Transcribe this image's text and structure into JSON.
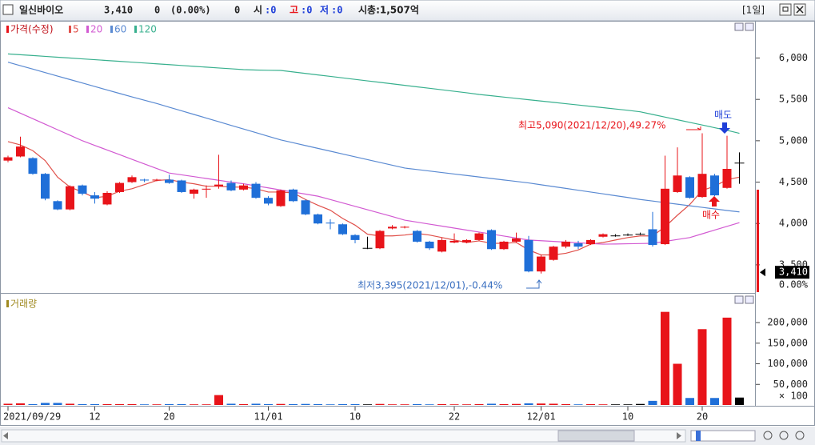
{
  "header": {
    "name": "일신바이오",
    "price": "3,410",
    "change": "0",
    "change_pct": "(0.00%)",
    "volume": "0",
    "open": {
      "label": "시",
      "value": ":0"
    },
    "high": {
      "label": "고",
      "value": ":0"
    },
    "low": {
      "label": "저",
      "value": ":0"
    },
    "market_cap": "시총:1,507억",
    "period": "[1일]"
  },
  "chart_data": [
    {
      "type": "candlestick",
      "legend_title": "가격(수정)",
      "up_color": "#e8141a",
      "down_color": "#1f6fd8",
      "doji_color": "#000000",
      "categories": [
        "2021/09/29",
        null,
        null,
        null,
        null,
        null,
        null,
        "12",
        null,
        null,
        null,
        null,
        null,
        "20",
        null,
        null,
        null,
        null,
        null,
        null,
        null,
        "11/01",
        null,
        null,
        null,
        null,
        null,
        null,
        "10",
        null,
        null,
        null,
        null,
        null,
        null,
        null,
        "22",
        null,
        null,
        null,
        null,
        null,
        null,
        "12/01",
        null,
        null,
        null,
        null,
        null,
        null,
        "10",
        null,
        null,
        null,
        null,
        null,
        "20",
        null,
        null,
        null
      ],
      "open": [
        4760,
        4810,
        4790,
        4600,
        4270,
        4170,
        4460,
        4340,
        4230,
        4380,
        4500,
        4530,
        4520,
        4530,
        4520,
        4360,
        4410,
        4450,
        4490,
        4410,
        4480,
        4310,
        4210,
        4410,
        4280,
        4110,
        4010,
        3990,
        3860,
        3700,
        3700,
        3940,
        3950,
        3910,
        3780,
        3660,
        3770,
        3770,
        3800,
        3920,
        3690,
        3780,
        3800,
        3420,
        3560,
        3720,
        3760,
        3750,
        3840,
        3850,
        3860,
        3870,
        3930,
        3750,
        4380,
        4560,
        4320,
        4580,
        4430,
        4730
      ],
      "high": [
        4820,
        5050,
        4800,
        4610,
        4280,
        4460,
        4470,
        4380,
        4390,
        4500,
        4580,
        4540,
        4540,
        4590,
        4530,
        4420,
        4460,
        4830,
        4520,
        4480,
        4500,
        4330,
        4410,
        4420,
        4290,
        4120,
        4050,
        4000,
        3870,
        3840,
        3920,
        3980,
        3970,
        3920,
        3790,
        3830,
        3880,
        3810,
        3890,
        3930,
        3790,
        3890,
        3850,
        3620,
        3730,
        3800,
        3790,
        3810,
        3880,
        3870,
        3880,
        3890,
        4140,
        4820,
        4920,
        4570,
        5090,
        4600,
        5060,
        4860
      ],
      "low": [
        4740,
        4800,
        4590,
        4280,
        4160,
        4160,
        4340,
        4240,
        4220,
        4370,
        4490,
        4500,
        4510,
        4480,
        4370,
        4300,
        4310,
        4420,
        4390,
        4400,
        4300,
        4220,
        4200,
        4260,
        4100,
        3990,
        3930,
        3860,
        3760,
        3690,
        3690,
        3930,
        3940,
        3770,
        3680,
        3650,
        3760,
        3760,
        3790,
        3680,
        3680,
        3770,
        3410,
        3395,
        3550,
        3700,
        3690,
        3740,
        3830,
        3840,
        3850,
        3860,
        3720,
        3740,
        4370,
        4300,
        4310,
        4330,
        4420,
        4480
      ],
      "close": [
        4800,
        4930,
        4600,
        4300,
        4170,
        4450,
        4360,
        4300,
        4370,
        4490,
        4560,
        4520,
        4530,
        4490,
        4380,
        4410,
        4420,
        4470,
        4400,
        4460,
        4310,
        4240,
        4400,
        4270,
        4110,
        4000,
        4000,
        3870,
        3800,
        3700,
        3910,
        3960,
        3960,
        3780,
        3700,
        3800,
        3790,
        3800,
        3880,
        3690,
        3780,
        3820,
        3420,
        3600,
        3720,
        3780,
        3720,
        3800,
        3870,
        3850,
        3860,
        3870,
        3740,
        4420,
        4580,
        4310,
        4600,
        4340,
        4660,
        4730
      ],
      "series": [
        {
          "name": "5",
          "color": "#e0504a",
          "values": [
            4990,
            4950,
            4880,
            4760,
            4560,
            4440,
            4380,
            4310,
            4330,
            4390,
            4420,
            4470,
            4520,
            4530,
            4500,
            4480,
            4450,
            4450,
            4440,
            4440,
            4420,
            4380,
            4380,
            4370,
            4290,
            4220,
            4160,
            4060,
            3980,
            3870,
            3850,
            3850,
            3860,
            3880,
            3860,
            3830,
            3800,
            3770,
            3790,
            3760,
            3760,
            3770,
            3680,
            3620,
            3620,
            3640,
            3680,
            3750,
            3770,
            3800,
            3830,
            3850,
            3850,
            3960,
            4100,
            4230,
            4400,
            4450,
            4530,
            4560
          ]
        },
        {
          "name": "20",
          "color": "#d25ad2",
          "values": [
            5400,
            5333,
            5267,
            5200,
            5133,
            5067,
            5000,
            4944,
            4888,
            4832,
            4776,
            4720,
            4664,
            4610,
            4588,
            4566,
            4544,
            4522,
            4500,
            4480,
            4455,
            4430,
            4405,
            4380,
            4355,
            4330,
            4289,
            4248,
            4207,
            4166,
            4125,
            4084,
            4040,
            4016,
            3992,
            3968,
            3944,
            3920,
            3896,
            3872,
            3848,
            3824,
            3800,
            3792,
            3783,
            3775,
            3767,
            3758,
            3750,
            3752,
            3755,
            3757,
            3760,
            3783,
            3807,
            3830,
            3875,
            3920,
            3965,
            4010
          ]
        },
        {
          "name": "60",
          "color": "#5a8ad2",
          "values": [
            5950,
            5908,
            5866,
            5824,
            5782,
            5740,
            5698,
            5656,
            5614,
            5572,
            5530,
            5490,
            5450,
            5406,
            5362,
            5318,
            5274,
            5230,
            5186,
            5142,
            5098,
            5054,
            5010,
            4976,
            4942,
            4908,
            4874,
            4840,
            4806,
            4772,
            4738,
            4704,
            4670,
            4652,
            4634,
            4616,
            4598,
            4580,
            4562,
            4544,
            4526,
            4508,
            4490,
            4468,
            4446,
            4424,
            4402,
            4380,
            4358,
            4336,
            4314,
            4290,
            4271,
            4252,
            4233,
            4214,
            4195,
            4176,
            4157,
            4140
          ]
        },
        {
          "name": "120",
          "color": "#38b08e",
          "values": [
            6050,
            6040,
            6030,
            6020,
            6010,
            6000,
            5990,
            5980,
            5970,
            5960,
            5950,
            5940,
            5930,
            5920,
            5910,
            5900,
            5890,
            5880,
            5870,
            5860,
            5855,
            5852,
            5850,
            5832,
            5814,
            5796,
            5778,
            5760,
            5742,
            5724,
            5706,
            5688,
            5670,
            5652,
            5634,
            5616,
            5598,
            5580,
            5560,
            5544,
            5528,
            5512,
            5496,
            5480,
            5464,
            5448,
            5432,
            5416,
            5400,
            5384,
            5368,
            5350,
            5318,
            5286,
            5254,
            5222,
            5190,
            5158,
            5126,
            5090
          ]
        }
      ],
      "ylim": [
        3170,
        6450
      ],
      "yticks": [
        {
          "value": 6000,
          "label": "6,000"
        },
        {
          "value": 5500,
          "label": "5,500"
        },
        {
          "value": 5000,
          "label": "5,000"
        },
        {
          "value": 4500,
          "label": "4,500"
        },
        {
          "value": 4000,
          "label": "4,000"
        },
        {
          "value": 3500,
          "label": "3,500"
        }
      ],
      "last_price": {
        "value": 3410,
        "label": "3,410"
      },
      "last_change": "0.00%",
      "annotations": [
        {
          "text": "최고5,090(2021/12/20),49.27%",
          "color": "#e8141a"
        },
        {
          "text": "최저3,395(2021/12/01),-0.44%",
          "color": "#3a6fc0"
        },
        {
          "text": "매도",
          "color": "#1f3fd8"
        },
        {
          "text": "매수",
          "color": "#e8141a"
        }
      ]
    },
    {
      "type": "bar",
      "title": "거래량",
      "title_color": "#a08a20",
      "values": [
        3000,
        4000,
        2000,
        5000,
        5000,
        3000,
        2000,
        2000,
        2000,
        2000,
        2000,
        1500,
        1500,
        2000,
        2000,
        1500,
        1500,
        24000,
        3000,
        2000,
        3000,
        2000,
        2500,
        2000,
        2500,
        2000,
        1500,
        2000,
        2000,
        1500,
        2500,
        1500,
        1500,
        2000,
        1500,
        2000,
        1500,
        1500,
        2000,
        3000,
        2000,
        2500,
        4000,
        3500,
        3000,
        2000,
        1500,
        2000,
        1500,
        1500,
        1500,
        2500,
        10000,
        226000,
        100000,
        17000,
        184000,
        17000,
        212000,
        18000
      ],
      "ylim": [
        0,
        270000
      ],
      "yticks": [
        {
          "value": 200000,
          "label": "200,000"
        },
        {
          "value": 150000,
          "label": "150,000"
        },
        {
          "value": 100000,
          "label": "100,000"
        },
        {
          "value": 50000,
          "label": "50,000"
        }
      ],
      "unit_label": "× 100"
    }
  ]
}
